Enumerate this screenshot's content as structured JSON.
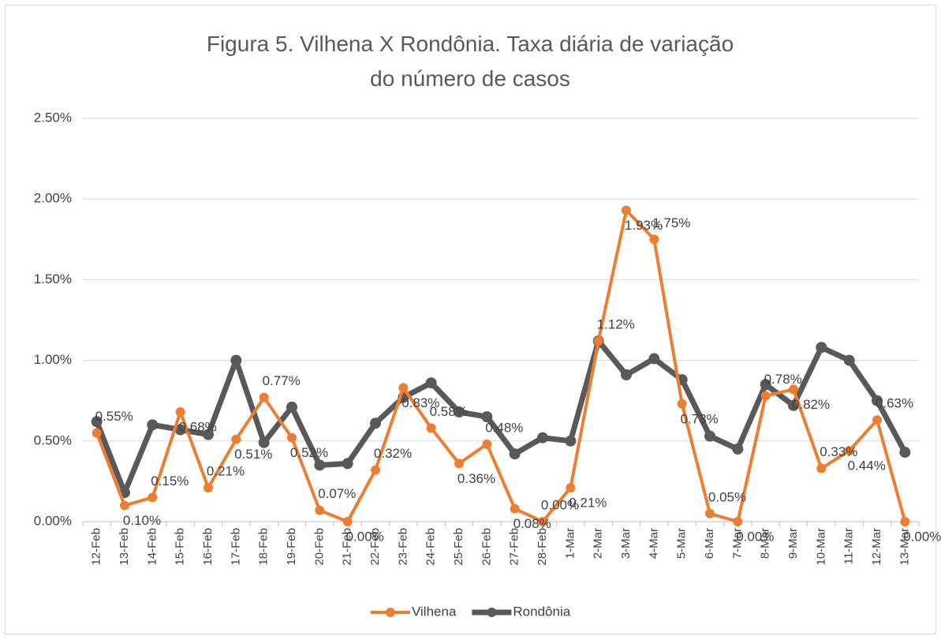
{
  "chart_data": {
    "type": "line",
    "title": "Figura 5. Vilhena X Rondônia. Taxa diária de variação do número de casos",
    "categories": [
      "12-Feb",
      "13-Feb",
      "14-Feb",
      "15-Feb",
      "16-Feb",
      "17-Feb",
      "18-Feb",
      "19-Feb",
      "20-Feb",
      "21-Feb",
      "22-Feb",
      "23-Feb",
      "24-Feb",
      "25-Feb",
      "26-Feb",
      "27-Feb",
      "28-Feb",
      "1-Mar",
      "2-Mar",
      "3-Mar",
      "4-Mar",
      "5-Mar",
      "6-Mar",
      "7-Mar",
      "8-Mar",
      "9-Mar",
      "10-Mar",
      "11-Mar",
      "12-Mar",
      "13-Mar"
    ],
    "series": [
      {
        "name": "Vilhena",
        "color": "#ed7d31",
        "values": [
          0.55,
          0.1,
          0.15,
          0.68,
          0.21,
          0.51,
          0.77,
          0.52,
          0.07,
          0.0,
          0.32,
          0.83,
          0.58,
          0.36,
          0.48,
          0.08,
          0.0,
          0.21,
          1.12,
          1.93,
          1.75,
          0.73,
          0.05,
          0.0,
          0.78,
          0.82,
          0.33,
          0.44,
          0.63,
          0.0
        ],
        "value_labels": [
          "0.55%",
          "0.10%",
          "0.15%",
          "0.68%",
          "0.21%",
          "0.51%",
          "0.77%",
          "0.52%",
          "0.07%",
          "0.00%",
          "0.32%",
          "0.83%",
          "0.58%",
          "0.36%",
          "0.48%",
          "0.08%",
          "0.00%",
          "0.21%",
          "1.12%",
          "1.93%",
          "1.75%",
          "0.73%",
          "0.05%",
          "0.00%",
          "0.78%",
          "0.82%",
          "0.33%",
          "0.44%",
          "0.63%",
          "0.00%"
        ]
      },
      {
        "name": "Rondônia",
        "color": "#595959",
        "values": [
          0.62,
          0.18,
          0.6,
          0.57,
          0.54,
          1.0,
          0.49,
          0.71,
          0.35,
          0.36,
          0.61,
          0.77,
          0.86,
          0.68,
          0.65,
          0.42,
          0.52,
          0.5,
          1.12,
          0.91,
          1.01,
          0.88,
          0.53,
          0.45,
          0.85,
          0.72,
          1.08,
          1.0,
          0.75,
          0.43
        ]
      }
    ],
    "ylim": [
      0,
      2.5
    ],
    "yticks": [
      {
        "value": 0,
        "label": "0.00%"
      },
      {
        "value": 0.5,
        "label": "0.50%"
      },
      {
        "value": 1,
        "label": "1.00%"
      },
      {
        "value": 1.5,
        "label": "1.50%"
      },
      {
        "value": 2,
        "label": "2.00%"
      },
      {
        "value": 2.5,
        "label": "2.50%"
      }
    ],
    "grid": true,
    "legend": "bottom"
  }
}
